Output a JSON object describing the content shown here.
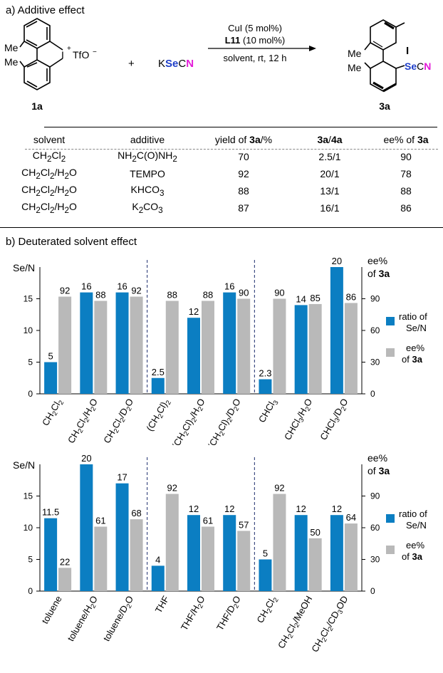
{
  "part_a": {
    "heading": "a) Additive effect",
    "reactant_label": "1a",
    "product_label": "3a",
    "reactant_me1": "Me",
    "reactant_me2": "Me",
    "reactant_i": "I",
    "reactant_plus_charge": "+",
    "counterion": "TfO",
    "counterion_charge": "−",
    "plus_sign": "+",
    "reagent_k": "K",
    "reagent_se": "Se",
    "reagent_c": "C",
    "reagent_n": "N",
    "cond_cat": "CuI (5 mol%)",
    "cond_ligand_bold": "L11",
    "cond_ligand_rest": " (10 mol%)",
    "cond_solvent": "solvent, rt, 12 h",
    "product_me1": "Me",
    "product_me2": "Me",
    "product_i": "I",
    "product_se": "Se",
    "product_c": "C",
    "product_n": "N",
    "table": {
      "h_solvent": "solvent",
      "h_additive": "additive",
      "h_yield_pre": "yield of ",
      "h_yield_bold": "3a",
      "h_yield_post": "/%",
      "h_ratio_a": "3a",
      "h_ratio_sep": "/",
      "h_ratio_b": "4a",
      "h_ee_pre": "ee% of ",
      "h_ee_bold": "3a",
      "rows": [
        {
          "solvent": "CH2Cl2",
          "additive": "NH2C(O)NH2",
          "yield": "70",
          "ratio": "2.5/1",
          "ee": "90"
        },
        {
          "solvent": "CH2Cl2/H2O",
          "additive": "TEMPO",
          "yield": "92",
          "ratio": "20/1",
          "ee": "78"
        },
        {
          "solvent": "CH2Cl2/H2O",
          "additive": "KHCO3",
          "yield": "88",
          "ratio": "13/1",
          "ee": "88"
        },
        {
          "solvent": "CH2Cl2/H2O",
          "additive": "K2CO3",
          "yield": "87",
          "ratio": "16/1",
          "ee": "86"
        }
      ]
    }
  },
  "part_b": {
    "heading": "b) Deuterated solvent effect"
  },
  "chart_data": [
    {
      "type": "bar",
      "categories": [
        "CH2Cl2",
        "CH2Cl2/H2O",
        "CH2Cl2/D2O",
        "(CH2Cl)2",
        "(CH2Cl)2/H2O",
        "(CH2Cl)2/D2O",
        "CHCl3",
        "CHCl3/H2O",
        "CHCl3/D2O"
      ],
      "series": [
        {
          "name": "ratio of Se/N",
          "axis": "left",
          "values": [
            5,
            16,
            16,
            2.5,
            12,
            16,
            2.3,
            14,
            20
          ],
          "labels": [
            "5",
            "16",
            "16",
            "2.5",
            "12",
            "16",
            "2.3",
            "14",
            "20"
          ],
          "color": "#0b7ec2"
        },
        {
          "name": "ee% of 3a",
          "axis": "right",
          "values": [
            92,
            88,
            92,
            88,
            88,
            90,
            90,
            85,
            86
          ],
          "labels": [
            "92",
            "88",
            "92",
            "88",
            "88",
            "90",
            "90",
            "85",
            "86"
          ],
          "color": "#b9b9b9"
        }
      ],
      "ylabel_left": "Se/N",
      "ylabel_right_1": "ee%",
      "ylabel_right_2_pre": "of ",
      "ylabel_right_2_bold": "3a",
      "ylim_left": [
        0,
        20
      ],
      "ylim_right": [
        0,
        120
      ],
      "yticks_left": [
        "0",
        "5",
        "10",
        "15"
      ],
      "yticks_right": [
        "0",
        "30",
        "60",
        "90"
      ],
      "groups": [
        3,
        3,
        3
      ],
      "legend": {
        "ratio_1": "ratio of",
        "ratio_2": "Se/N",
        "ee_1": "ee%",
        "ee_2_pre": "of ",
        "ee_2_bold": "3a",
        "placement": "right"
      }
    },
    {
      "type": "bar",
      "categories": [
        "toluene",
        "toluene/H2O",
        "toluene/D2O",
        "THF",
        "THF/H2O",
        "THF/D2O",
        "CH2Cl2",
        "CH2Cl2/MeOH",
        "CH2Cl2/CD3OD"
      ],
      "series": [
        {
          "name": "ratio of Se/N",
          "axis": "left",
          "values": [
            11.5,
            20,
            17,
            4,
            12,
            12,
            5,
            12,
            12
          ],
          "labels": [
            "11.5",
            "20",
            "17",
            "4",
            "12",
            "12",
            "5",
            "12",
            "12"
          ],
          "color": "#0b7ec2"
        },
        {
          "name": "ee% of 3a",
          "axis": "right",
          "values": [
            22,
            61,
            68,
            92,
            61,
            57,
            92,
            50,
            64
          ],
          "labels": [
            "22",
            "61",
            "68",
            "92",
            "61",
            "57",
            "92",
            "50",
            "64"
          ],
          "color": "#b9b9b9"
        }
      ],
      "ylabel_left": "Se/N",
      "ylabel_right_1": "ee%",
      "ylabel_right_2_pre": "of ",
      "ylabel_right_2_bold": "3a",
      "ylim_left": [
        0,
        20
      ],
      "ylim_right": [
        0,
        120
      ],
      "yticks_left": [
        "0",
        "5",
        "10",
        "15"
      ],
      "yticks_right": [
        "0",
        "30",
        "60",
        "90"
      ],
      "groups": [
        3,
        3,
        3
      ],
      "legend": {
        "ratio_1": "ratio of",
        "ratio_2": "Se/N",
        "ee_1": "ee%",
        "ee_2_pre": "of ",
        "ee_2_bold": "3a",
        "placement": "right"
      }
    }
  ]
}
